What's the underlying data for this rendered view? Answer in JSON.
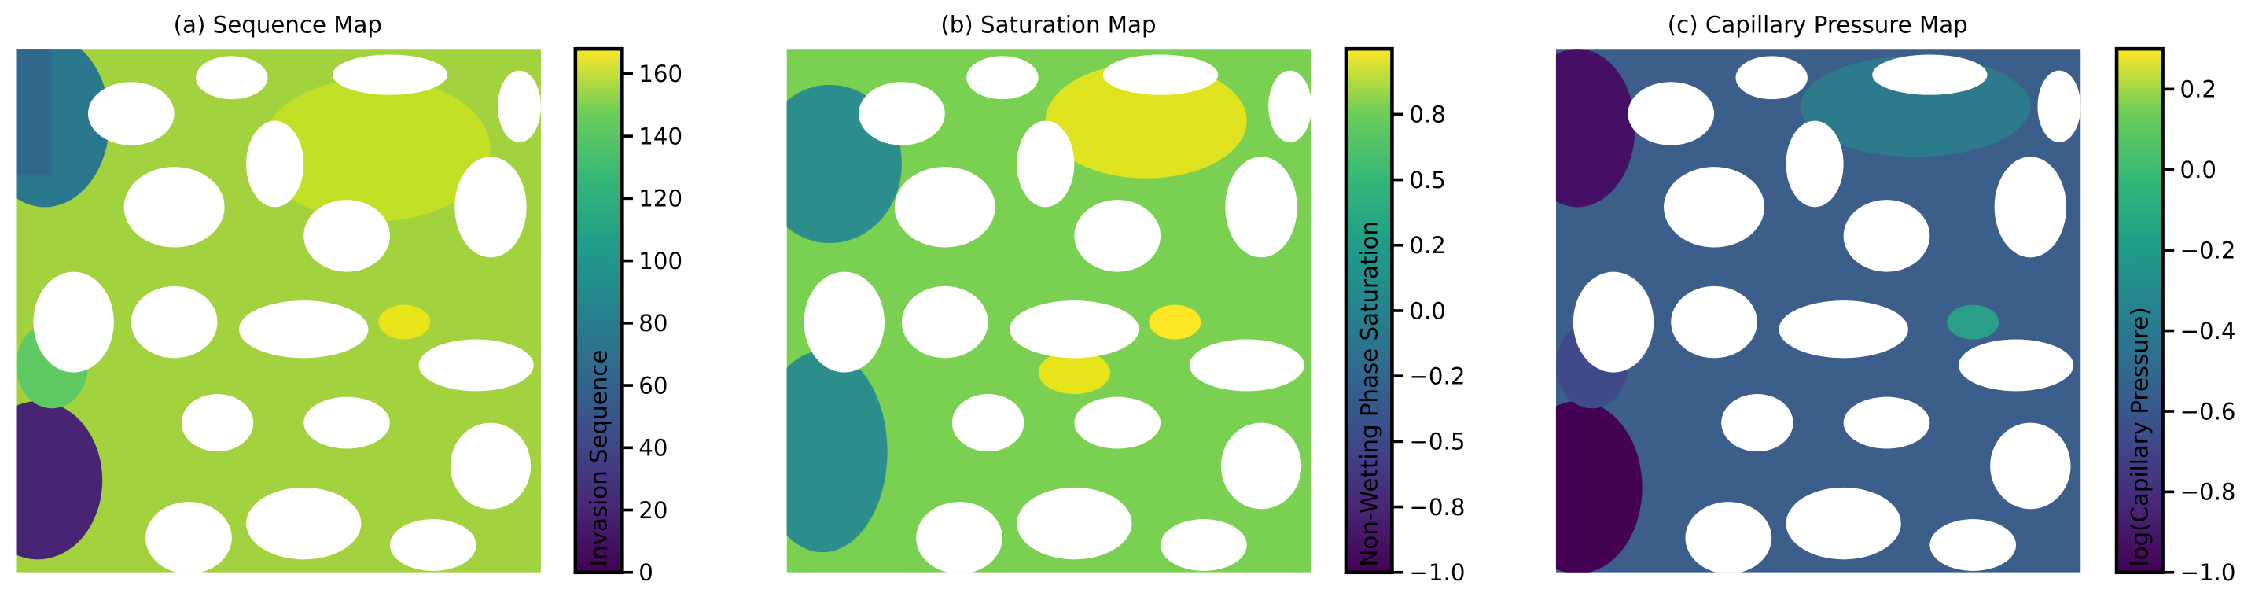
{
  "chart_data": [
    {
      "type": "heatmap",
      "title": "(a) Sequence Map",
      "colorbar_label": "Invasion Sequence",
      "cmap": "viridis",
      "ylim": [
        0,
        168
      ],
      "yticks": [
        0,
        20,
        40,
        60,
        80,
        100,
        120,
        140,
        160
      ]
    },
    {
      "type": "heatmap",
      "title": "(b) Saturation Map",
      "colorbar_label": "Non-Wetting Phase Saturation",
      "cmap": "viridis",
      "ylim": [
        -1,
        1
      ],
      "yticks": [
        {
          "value": -1,
          "label": "−1.0"
        },
        {
          "value": -0.75,
          "label": "−0.8"
        },
        {
          "value": -0.5,
          "label": "−0.5"
        },
        {
          "value": -0.25,
          "label": "−0.2"
        },
        {
          "value": 0,
          "label": "0.0"
        },
        {
          "value": 0.25,
          "label": "0.2"
        },
        {
          "value": 0.5,
          "label": "0.5"
        },
        {
          "value": 0.75,
          "label": "0.8"
        }
      ]
    },
    {
      "type": "heatmap",
      "title": "(c) Capillary Pressure Map",
      "colorbar_label": "log(Capillary Pressure)",
      "cmap": "viridis",
      "ylim": [
        -1,
        0.3
      ],
      "yticks": [
        {
          "value": -1,
          "label": "−1.0"
        },
        {
          "value": -0.8,
          "label": "−0.8"
        },
        {
          "value": -0.6,
          "label": "−0.6"
        },
        {
          "value": -0.4,
          "label": "−0.4"
        },
        {
          "value": -0.2,
          "label": "−0.2"
        },
        {
          "value": 0,
          "label": "0.0"
        },
        0.2
      ]
    }
  ]
}
